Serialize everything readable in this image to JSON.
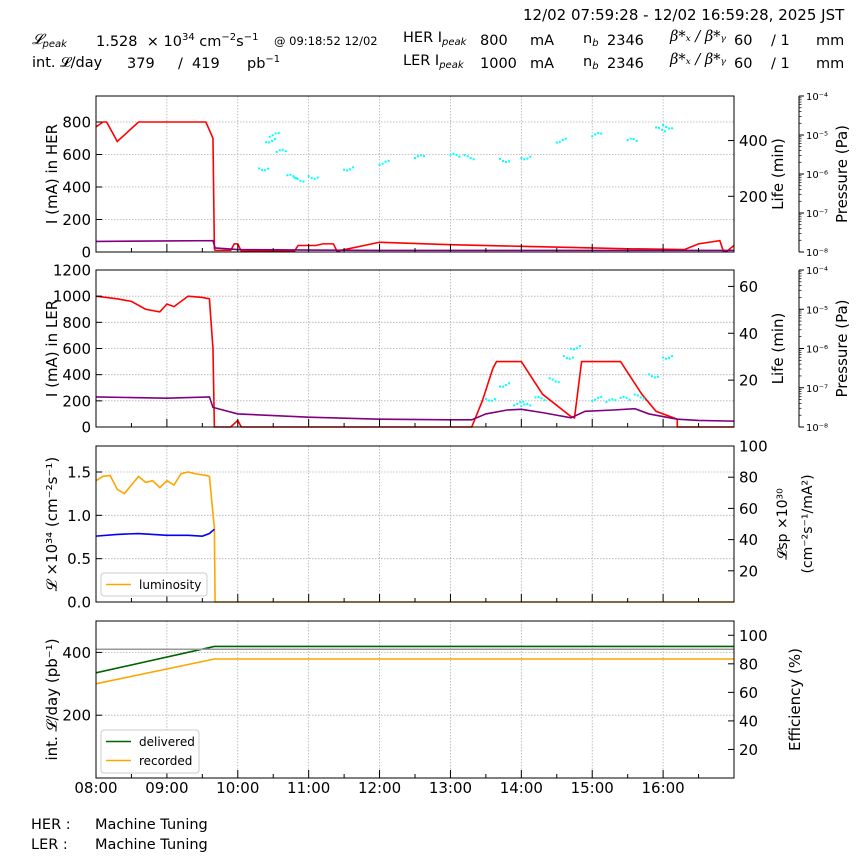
{
  "header": {
    "time_range": "12/02 07:59:28 - 12/02 16:59:28, 2025 JST",
    "peak_lumi_label": "𝓛",
    "peak_lumi_sub": "peak",
    "peak_lumi_value": "1.528",
    "peak_lumi_unit_prefix": "× 10",
    "peak_lumi_exp": "34",
    "peak_lumi_unit": "cm",
    "peak_lumi_unit_exp1": "−2",
    "peak_lumi_unit_s": "s",
    "peak_lumi_unit_exp2": "−1",
    "peak_lumi_time": "@ 09:18:52 12/02",
    "int_lumi_label": "int. 𝓛/day",
    "int_lumi_recorded": "379",
    "int_lumi_sep": "/",
    "int_lumi_delivered": "419",
    "int_lumi_unit": "pb",
    "int_lumi_unit_exp": "−1",
    "her": {
      "label": "HER I",
      "sub": "peak",
      "current": "800",
      "unit": "mA",
      "nb_label": "n",
      "nb_sub": "b",
      "nb": "2346",
      "beta_label": "β*ₓ / β*ᵧ",
      "beta_x": "60",
      "beta_y": "/ 1",
      "beta_unit": "mm"
    },
    "ler": {
      "label": "LER I",
      "sub": "peak",
      "current": "1000",
      "unit": "mA",
      "nb_label": "n",
      "nb_sub": "b",
      "nb": "2346",
      "beta_label": "β*ₓ / β*ᵧ",
      "beta_x": "60",
      "beta_y": "/ 1",
      "beta_unit": "mm"
    }
  },
  "footer": {
    "her_label": "HER :",
    "her_status": "Machine Tuning",
    "ler_label": "LER :",
    "ler_status": "Machine Tuning"
  },
  "colors": {
    "current": "#ff0000",
    "life": "#00ffff",
    "pressure": "#800080",
    "luminosity": "#ffa500",
    "specific_lumi": "#0000ff",
    "delivered": "#006400",
    "recorded": "#ffa500",
    "reference": "#999999",
    "grid": "#b0b0b0"
  },
  "chart_data": [
    {
      "type": "line",
      "title": "HER",
      "xlabel": "",
      "ylabel": "I (mA) in HER",
      "ylabel_right": "Life (min)",
      "ylabel_right2": "Pressure (Pa)",
      "xlim": [
        "08:00",
        "17:00"
      ],
      "ylim": [
        0,
        960
      ],
      "yticks": [
        0,
        200,
        400,
        600,
        800
      ],
      "yticks_right": [
        200,
        400
      ],
      "ylim_right": [
        0,
        560
      ],
      "yticks_right2": [
        "10⁻⁸",
        "10⁻⁷",
        "10⁻⁶",
        "10⁻⁵",
        "10⁻⁴"
      ],
      "grid": true,
      "series": [
        {
          "name": "current",
          "color": "#ff0000",
          "x": [
            8.0,
            8.1,
            8.15,
            8.3,
            8.5,
            8.6,
            9.0,
            9.3,
            9.55,
            9.65,
            9.67,
            9.68,
            9.9,
            9.95,
            10.0,
            10.05,
            10.1,
            10.8,
            10.85,
            11.1,
            11.2,
            11.35,
            11.4,
            12.0,
            13.0,
            14.0,
            15.0,
            15.5,
            16.3,
            16.5,
            16.8,
            16.85,
            16.9,
            17.0
          ],
          "y": [
            770,
            800,
            800,
            680,
            760,
            800,
            800,
            800,
            800,
            700,
            20,
            10,
            10,
            50,
            50,
            5,
            5,
            5,
            40,
            40,
            50,
            50,
            5,
            60,
            45,
            35,
            25,
            20,
            15,
            50,
            70,
            5,
            5,
            40
          ]
        },
        {
          "name": "pressure",
          "color": "#800080",
          "x": [
            8.0,
            9.0,
            9.65,
            9.68,
            10.0,
            11.0,
            12.0,
            13.0,
            14.0,
            15.0,
            16.0,
            17.0
          ],
          "y": [
            65,
            68,
            70,
            25,
            15,
            12,
            10,
            10,
            10,
            10,
            10,
            10
          ]
        },
        {
          "name": "life",
          "color": "#00ffff",
          "style": "scatter",
          "x": [
            10.3,
            10.4,
            10.45,
            10.55,
            10.7,
            10.8,
            11.0,
            11.5,
            12.0,
            12.5,
            13.0,
            13.2,
            13.7,
            14.0,
            14.5,
            15.0,
            15.5,
            15.9,
            16.0
          ],
          "y": [
            300,
            400,
            420,
            360,
            270,
            260,
            270,
            300,
            320,
            340,
            345,
            340,
            330,
            340,
            400,
            420,
            400,
            440,
            450
          ]
        }
      ]
    },
    {
      "type": "line",
      "title": "LER",
      "xlabel": "",
      "ylabel": "I (mA) in LER",
      "ylabel_right": "Life (min)",
      "ylabel_right2": "Pressure (Pa)",
      "xlim": [
        "08:00",
        "17:00"
      ],
      "ylim": [
        0,
        1200
      ],
      "yticks": [
        0,
        200,
        400,
        600,
        800,
        1000,
        1200
      ],
      "yticks_right": [
        20,
        40,
        60
      ],
      "ylim_right": [
        0,
        67
      ],
      "yticks_right2": [
        "10⁻⁸",
        "10⁻⁷",
        "10⁻⁶",
        "10⁻⁵",
        "10⁻⁴"
      ],
      "grid": true,
      "series": [
        {
          "name": "current",
          "color": "#ff0000",
          "x": [
            8.0,
            8.3,
            8.5,
            8.7,
            8.9,
            9.0,
            9.1,
            9.3,
            9.5,
            9.6,
            9.65,
            9.67,
            9.9,
            10.0,
            10.05,
            13.3,
            13.45,
            13.6,
            13.65,
            13.7,
            14.0,
            14.3,
            14.7,
            14.75,
            14.85,
            15.0,
            15.4,
            15.7,
            15.9,
            16.2,
            16.2,
            17.0
          ],
          "y": [
            1000,
            980,
            960,
            900,
            880,
            940,
            920,
            1000,
            990,
            980,
            600,
            0,
            0,
            50,
            0,
            0,
            200,
            450,
            500,
            500,
            500,
            250,
            80,
            70,
            500,
            500,
            500,
            250,
            120,
            60,
            0,
            0
          ]
        },
        {
          "name": "pressure",
          "color": "#800080",
          "x": [
            8.0,
            8.5,
            9.0,
            9.6,
            9.65,
            10.0,
            11.0,
            12.0,
            13.0,
            13.3,
            13.5,
            13.8,
            14.0,
            14.3,
            14.7,
            14.9,
            15.3,
            15.6,
            15.8,
            16.2,
            16.5,
            17.0
          ],
          "y": [
            230,
            225,
            220,
            230,
            150,
            100,
            75,
            60,
            55,
            55,
            100,
            130,
            135,
            110,
            70,
            120,
            130,
            140,
            100,
            60,
            50,
            45
          ]
        },
        {
          "name": "life",
          "color": "#00ffff",
          "style": "scatter",
          "x": [
            13.5,
            13.7,
            13.9,
            14.0,
            14.2,
            14.4,
            14.6,
            14.7,
            15.0,
            15.2,
            15.4,
            15.6,
            15.8,
            16.0
          ],
          "y": [
            12,
            18,
            10,
            9,
            12,
            20,
            30,
            34,
            12,
            11,
            12,
            13,
            22,
            30
          ]
        }
      ]
    },
    {
      "type": "line",
      "title": "Luminosity",
      "xlabel": "",
      "ylabel": "𝓛 ×10³⁴ (cm⁻²s⁻¹)",
      "ylabel_right": "𝓛sp ×10³⁰ (cm⁻²s⁻¹/mA²)",
      "xlim": [
        "08:00",
        "17:00"
      ],
      "ylim": [
        0,
        1.8
      ],
      "yticks": [
        0.0,
        0.5,
        1.0,
        1.5
      ],
      "yticks_right": [
        20,
        40,
        60,
        80,
        100
      ],
      "ylim_right": [
        0,
        100
      ],
      "grid": true,
      "legend": [
        "luminosity"
      ],
      "legend_position": "lower left",
      "series": [
        {
          "name": "luminosity",
          "color": "#ffa500",
          "x": [
            8.0,
            8.1,
            8.2,
            8.3,
            8.4,
            8.5,
            8.6,
            8.7,
            8.8,
            8.9,
            9.0,
            9.1,
            9.2,
            9.3,
            9.4,
            9.55,
            9.6,
            9.67,
            9.68,
            17.0
          ],
          "y": [
            1.4,
            1.45,
            1.46,
            1.3,
            1.25,
            1.35,
            1.45,
            1.38,
            1.4,
            1.32,
            1.4,
            1.35,
            1.48,
            1.5,
            1.48,
            1.46,
            1.45,
            0.85,
            0.0,
            0.0
          ]
        },
        {
          "name": "specific_luminosity",
          "color": "#0000ff",
          "x": [
            8.0,
            8.3,
            8.6,
            9.0,
            9.3,
            9.5,
            9.6,
            9.67
          ],
          "y": [
            0.76,
            0.78,
            0.79,
            0.77,
            0.77,
            0.76,
            0.79,
            0.84
          ]
        }
      ]
    },
    {
      "type": "line",
      "title": "Integrated luminosity",
      "xlabel": "",
      "ylabel": "int. 𝓛/day (pb⁻¹)",
      "ylabel_right": "Efficiency (%)",
      "xlim": [
        "08:00",
        "17:00"
      ],
      "ylim": [
        0,
        500
      ],
      "yticks": [
        200,
        400
      ],
      "yticks_right": [
        20,
        40,
        60,
        80,
        100
      ],
      "ylim_right": [
        0,
        110
      ],
      "xticks": [
        "08:00",
        "09:00",
        "10:00",
        "11:00",
        "12:00",
        "13:00",
        "14:00",
        "15:00",
        "16:00"
      ],
      "grid": true,
      "legend": [
        "delivered",
        "recorded"
      ],
      "legend_position": "lower left",
      "series": [
        {
          "name": "delivered",
          "color": "#006400",
          "x": [
            8.0,
            9.67,
            17.0
          ],
          "y": [
            335,
            419,
            419
          ]
        },
        {
          "name": "recorded",
          "color": "#ffa500",
          "x": [
            8.0,
            9.67,
            17.0
          ],
          "y": [
            300,
            379,
            379
          ]
        },
        {
          "name": "efficiency_ref",
          "color": "#999999",
          "x": [
            8.0,
            17.0
          ],
          "y": [
            410,
            410
          ]
        }
      ]
    }
  ],
  "labels": {
    "panel1_ylabel": "I (mA) in HER",
    "panel2_ylabel": "I (mA) in LER",
    "panel3_ylabel": "𝓛 ×10³⁴ (cm⁻²s⁻¹)",
    "panel4_ylabel": "int. 𝓛/day (pb⁻¹)",
    "life_label": "Life (min)",
    "pressure_label": "Pressure (Pa)",
    "lsp_label_1": "𝓛sp ×10³⁰",
    "lsp_label_2": "(cm⁻²s⁻¹/mA²)",
    "efficiency_label": "Efficiency (%)",
    "legend_luminosity": "luminosity",
    "legend_delivered": "delivered",
    "legend_recorded": "recorded"
  }
}
